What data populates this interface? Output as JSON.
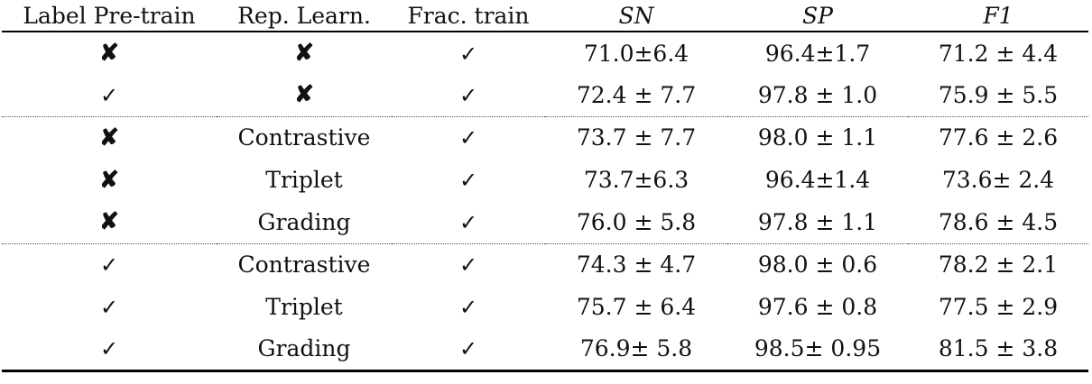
{
  "headers": [
    "Label Pre-train",
    "Rep. Learn.",
    "Frac. train",
    "SN",
    "SP",
    "F1"
  ],
  "symbols": {
    "cross": "✘",
    "check": "✓"
  },
  "rows": [
    {
      "label_pretrain": "✘",
      "rep_learn": "✘",
      "frac_train": "✓",
      "sn": "71.0±6.4",
      "sp": "96.4±1.7",
      "f1": "71.2 ± 4.4",
      "bold_metrics": false,
      "bold_rep": false
    },
    {
      "label_pretrain": "✓",
      "rep_learn": "✘",
      "frac_train": "✓",
      "sn": "72.4 ± 7.7",
      "sp": "97.8 ± 1.0",
      "f1": "75.9 ± 5.5",
      "bold_metrics": true,
      "bold_rep": false
    },
    {
      "label_pretrain": "✘",
      "rep_learn": "Contrastive",
      "frac_train": "✓",
      "sn": "73.7 ± 7.7",
      "sp": "98.0 ± 1.1",
      "f1": "77.6 ± 2.6",
      "bold_metrics": false,
      "bold_rep": false
    },
    {
      "label_pretrain": "✘",
      "rep_learn": "Triplet",
      "frac_train": "✓",
      "sn": "73.7±6.3",
      "sp": "96.4±1.4",
      "f1": "73.6± 2.4",
      "bold_metrics": false,
      "bold_rep": false
    },
    {
      "label_pretrain": "✘",
      "rep_learn": "Grading",
      "frac_train": "✓",
      "sn": "76.0 ± 5.8",
      "sp": "97.8 ± 1.1",
      "f1": "78.6 ± 4.5",
      "bold_metrics": true,
      "bold_rep": true
    },
    {
      "label_pretrain": "✓",
      "rep_learn": "Contrastive",
      "frac_train": "✓",
      "sn": "74.3 ± 4.7",
      "sp": "98.0 ± 0.6",
      "f1": "78.2 ± 2.1",
      "bold_metrics": false,
      "bold_rep": false
    },
    {
      "label_pretrain": "✓",
      "rep_learn": "Triplet",
      "frac_train": "✓",
      "sn": "75.7 ± 6.4",
      "sp": "97.6 ± 0.8",
      "f1": "77.5 ± 2.9",
      "bold_metrics": false,
      "bold_rep": false
    },
    {
      "label_pretrain": "✓",
      "rep_learn": "Grading",
      "frac_train": "✓",
      "sn": "76.9± 5.8",
      "sp": "98.5± 0.95",
      "f1": "81.5 ± 3.8",
      "bold_metrics": true,
      "bold_rep": true
    }
  ]
}
